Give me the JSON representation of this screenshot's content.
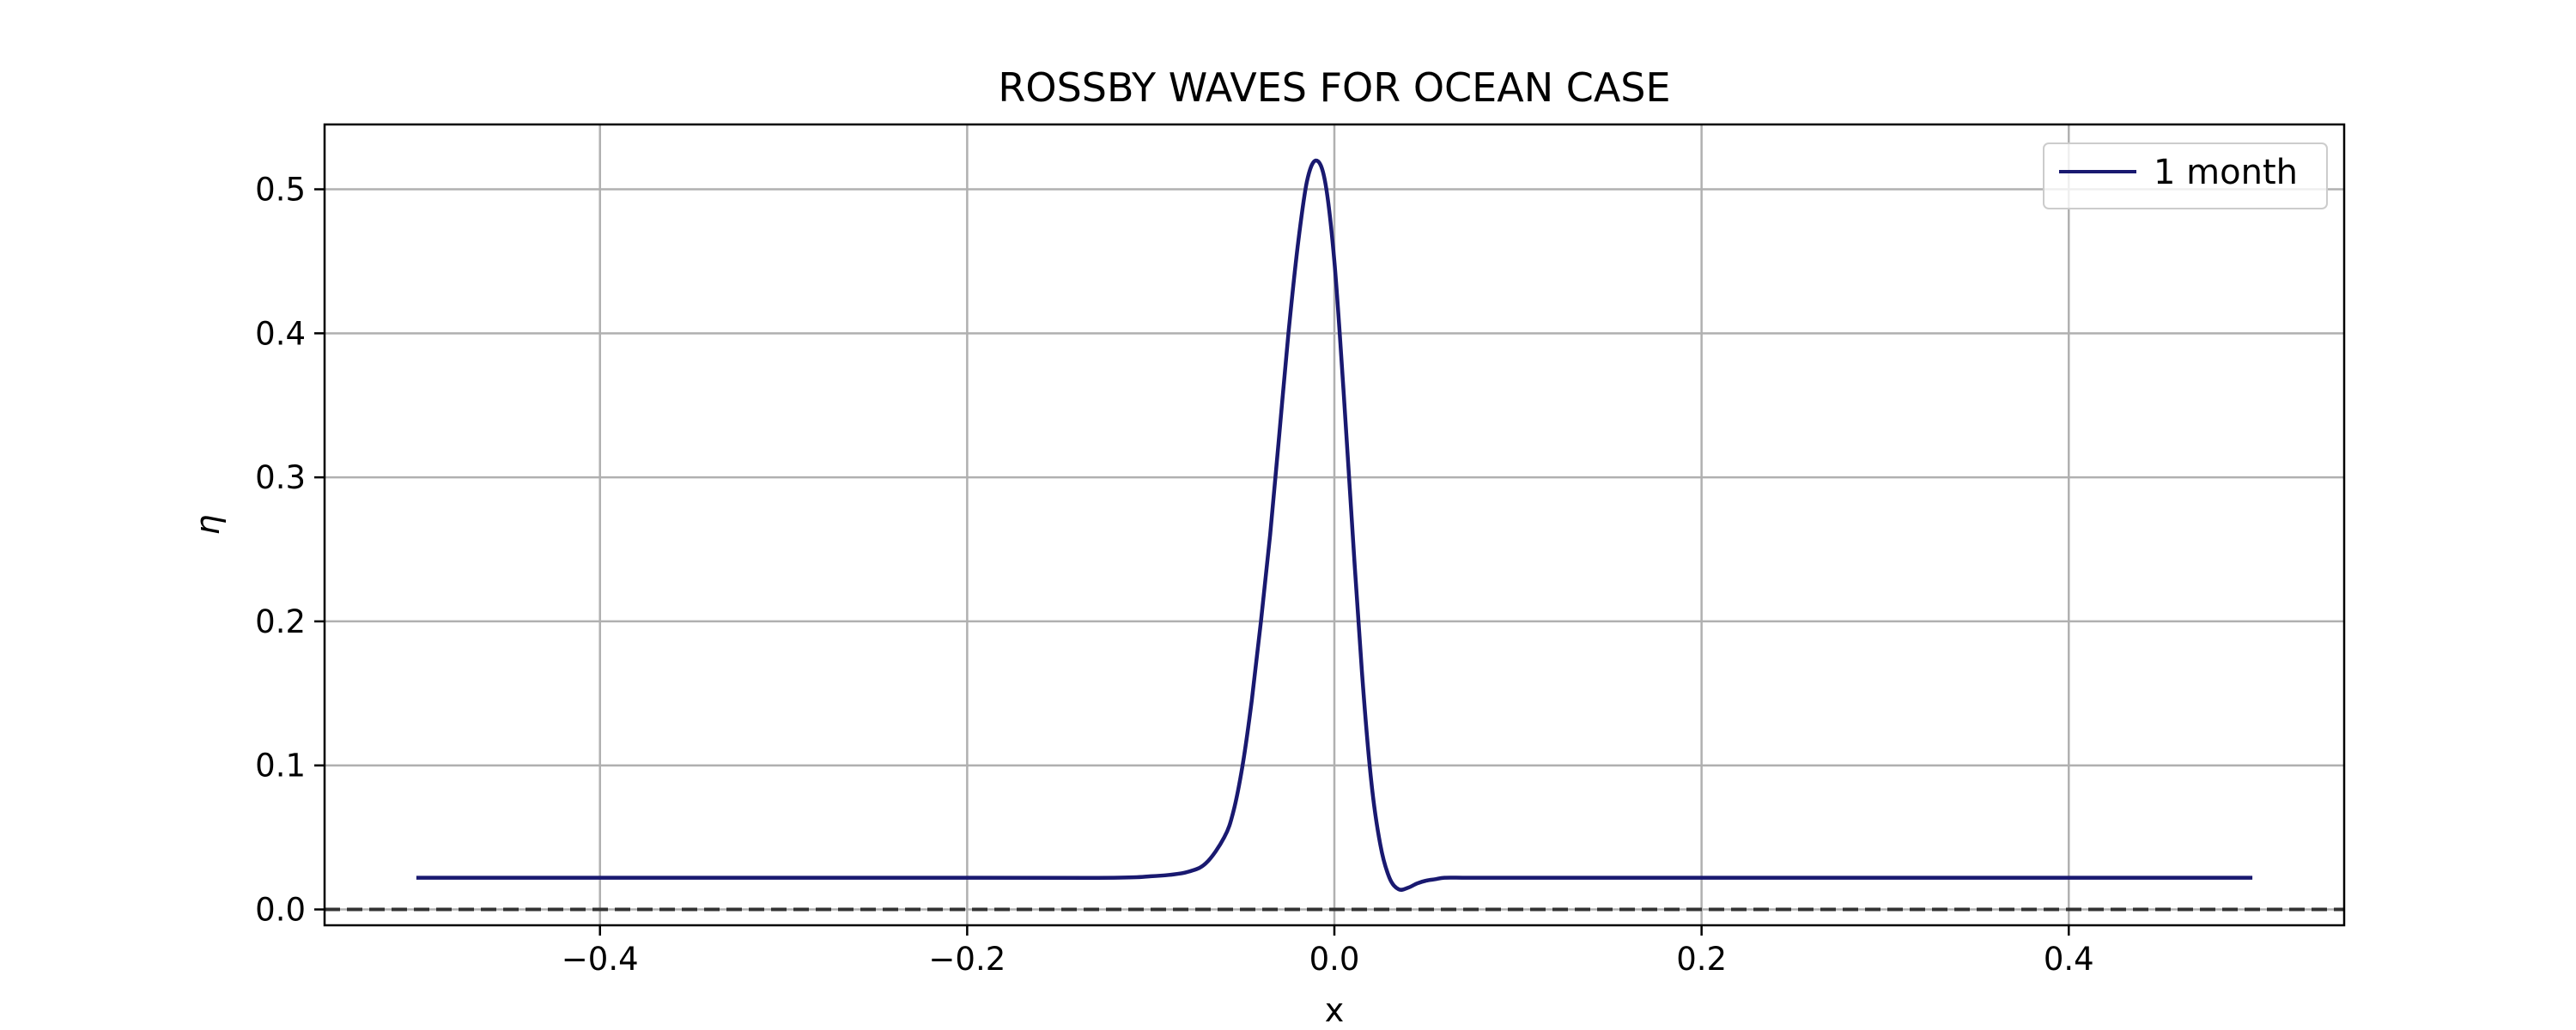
{
  "chart_data": {
    "type": "line",
    "title": "ROSSBY WAVES FOR OCEAN CASE",
    "xlabel": "x",
    "ylabel": "η",
    "xlim": [
      -0.55,
      0.55
    ],
    "ylim": [
      -0.011,
      0.545
    ],
    "xticks": [
      -0.4,
      -0.2,
      0.0,
      0.2,
      0.4
    ],
    "xtick_labels": [
      "−0.4",
      "−0.2",
      "0.0",
      "0.2",
      "0.4"
    ],
    "yticks": [
      0.0,
      0.1,
      0.2,
      0.3,
      0.4,
      0.5
    ],
    "ytick_labels": [
      "0.0",
      "0.1",
      "0.2",
      "0.3",
      "0.4",
      "0.5"
    ],
    "grid": true,
    "legend_position": "top-right",
    "reference_line": {
      "y": 0.0,
      "style": "dashed",
      "color": "#333333"
    },
    "series": [
      {
        "name": "1 month",
        "color": "#191970",
        "x": [
          -0.5,
          -0.2,
          -0.12,
          -0.1,
          -0.09,
          -0.08,
          -0.07,
          -0.06,
          -0.055,
          -0.05,
          -0.045,
          -0.04,
          -0.035,
          -0.03,
          -0.025,
          -0.02,
          -0.015,
          -0.01,
          -0.005,
          0.0,
          0.005,
          0.01,
          0.015,
          0.02,
          0.025,
          0.03,
          0.035,
          0.04,
          0.045,
          0.05,
          0.055,
          0.06,
          0.07,
          0.08,
          0.1,
          0.2,
          0.5
        ],
        "y": [
          0.022,
          0.022,
          0.022,
          0.023,
          0.024,
          0.026,
          0.032,
          0.05,
          0.068,
          0.1,
          0.145,
          0.2,
          0.26,
          0.33,
          0.4,
          0.46,
          0.505,
          0.52,
          0.505,
          0.45,
          0.36,
          0.26,
          0.165,
          0.09,
          0.045,
          0.022,
          0.014,
          0.015,
          0.018,
          0.02,
          0.021,
          0.022,
          0.022,
          0.022,
          0.022,
          0.022,
          0.022
        ]
      }
    ]
  }
}
